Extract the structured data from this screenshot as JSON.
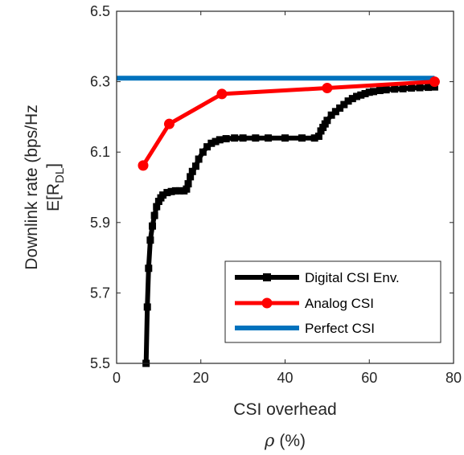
{
  "chart_data": {
    "type": "line",
    "xlabel": "CSI overhead",
    "xlabel_symbol": "ρ",
    "xlabel_unit": "(%)",
    "ylabel_line1": "Downlink rate (bps/Hz",
    "ylabel_line2_prefix": "E[R",
    "ylabel_line2_sub": "DL",
    "ylabel_line2_suffix": "]",
    "xlim": [
      0,
      80
    ],
    "ylim": [
      5.5,
      6.5
    ],
    "xticks": [
      0,
      20,
      40,
      60,
      80
    ],
    "yticks": [
      5.5,
      5.7,
      5.9,
      6.1,
      6.3,
      6.5
    ],
    "ytick_labels": [
      "5.5",
      "5.7",
      "5.9",
      "6.1",
      "6.3",
      "6.5"
    ],
    "legend_location": "lower-right",
    "grid": false,
    "series": [
      {
        "name": "Digital CSI Env.",
        "color": "#000000",
        "marker": "square",
        "x": [
          7.0,
          7.3,
          7.6,
          8.0,
          8.5,
          9.0,
          9.5,
          10.0,
          10.5,
          11.0,
          12.0,
          13.0,
          14.0,
          15.0,
          16.0,
          16.6,
          17.0,
          17.5,
          18.0,
          18.8,
          19.5,
          20.5,
          21.5,
          22.5,
          23.5,
          24.5,
          26,
          28,
          30,
          33,
          36,
          40,
          44,
          47,
          48.0,
          48.5,
          49.0,
          49.5,
          50.0,
          51.0,
          52.0,
          53.0,
          54.0,
          55.0,
          56.0,
          57.0,
          58.0,
          59.0,
          60.0,
          61.0,
          62.5,
          64,
          66,
          68,
          70,
          72,
          74,
          75.5
        ],
        "y": [
          5.5,
          5.66,
          5.77,
          5.85,
          5.89,
          5.92,
          5.945,
          5.96,
          5.97,
          5.978,
          5.985,
          5.988,
          5.99,
          5.99,
          5.99,
          5.995,
          6.01,
          6.03,
          6.045,
          6.06,
          6.08,
          6.1,
          6.115,
          6.125,
          6.13,
          6.135,
          6.138,
          6.14,
          6.14,
          6.14,
          6.14,
          6.14,
          6.14,
          6.14,
          6.145,
          6.16,
          6.17,
          6.18,
          6.19,
          6.205,
          6.215,
          6.225,
          6.235,
          6.245,
          6.252,
          6.258,
          6.262,
          6.266,
          6.27,
          6.272,
          6.275,
          6.277,
          6.279,
          6.28,
          6.282,
          6.283,
          6.284,
          6.285
        ]
      },
      {
        "name": "Analog CSI",
        "color": "#ff0000",
        "marker": "circle",
        "x": [
          6.3,
          12.5,
          25,
          50,
          75.5
        ],
        "y": [
          6.062,
          6.18,
          6.265,
          6.282,
          6.3
        ]
      },
      {
        "name": "Perfect CSI",
        "color": "#0072bd",
        "marker": "none",
        "x": [
          0,
          75.5
        ],
        "y": [
          6.31,
          6.31
        ]
      }
    ]
  }
}
